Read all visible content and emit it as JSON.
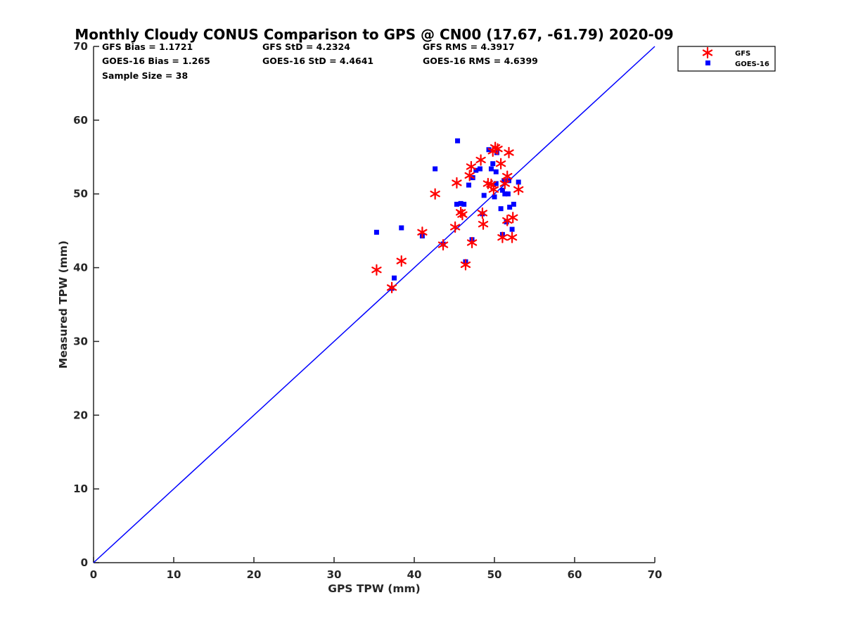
{
  "chart_data": {
    "type": "scatter",
    "title": "Monthly Cloudy CONUS Comparison to GPS @ CN00 (17.67, -61.79) 2020-09",
    "xlabel": "GPS TPW (mm)",
    "ylabel": "Measured TPW (mm)",
    "xlim": [
      0,
      70
    ],
    "ylim": [
      0,
      70
    ],
    "xticks": [
      "0",
      "10",
      "20",
      "30",
      "40",
      "50",
      "60",
      "70"
    ],
    "yticks": [
      "0",
      "10",
      "20",
      "30",
      "40",
      "50",
      "60",
      "70"
    ],
    "reference_line": {
      "name": "1:1 line",
      "color": "#0000ff",
      "points": [
        [
          0,
          0
        ],
        [
          70,
          70
        ]
      ]
    },
    "stats": {
      "gfs_bias": "GFS Bias = 1.1721",
      "goes_bias": "GOES-16 Bias = 1.265",
      "sample_size": "Sample Size = 38",
      "gfs_std": "GFS StD = 4.2324",
      "goes_std": "GOES-16 StD = 4.4641",
      "gfs_rms": "GFS RMS = 4.3917",
      "goes_rms": "GOES-16 RMS = 4.6399"
    },
    "legend": {
      "placement": "outside-top-right",
      "entries": [
        "GFS",
        "GOES-16"
      ]
    },
    "series": [
      {
        "name": "GFS",
        "marker": "asterisk",
        "color": "#ff0000",
        "points": [
          [
            35.3,
            39.7
          ],
          [
            37.2,
            37.3
          ],
          [
            38.4,
            40.9
          ],
          [
            41.0,
            44.8
          ],
          [
            42.6,
            50.0
          ],
          [
            43.6,
            43.1
          ],
          [
            45.1,
            45.5
          ],
          [
            45.3,
            51.5
          ],
          [
            45.8,
            47.5
          ],
          [
            46.0,
            47.2
          ],
          [
            46.4,
            40.4
          ],
          [
            46.9,
            52.5
          ],
          [
            47.1,
            53.7
          ],
          [
            47.2,
            43.4
          ],
          [
            48.3,
            54.6
          ],
          [
            48.5,
            47.4
          ],
          [
            48.6,
            45.9
          ],
          [
            49.2,
            51.4
          ],
          [
            49.6,
            51.3
          ],
          [
            49.8,
            55.8
          ],
          [
            49.9,
            50.6
          ],
          [
            50.1,
            56.3
          ],
          [
            50.4,
            56.1
          ],
          [
            50.8,
            54.1
          ],
          [
            51.0,
            44.1
          ],
          [
            51.3,
            51.4
          ],
          [
            51.6,
            46.4
          ],
          [
            51.6,
            52.4
          ],
          [
            52.2,
            44.1
          ],
          [
            52.3,
            46.8
          ],
          [
            53.0,
            50.6
          ],
          [
            51.8,
            55.6
          ]
        ]
      },
      {
        "name": "GOES-16",
        "marker": "square",
        "color": "#0000ff",
        "points": [
          [
            35.3,
            44.8
          ],
          [
            37.2,
            37.2
          ],
          [
            37.5,
            38.6
          ],
          [
            38.4,
            45.4
          ],
          [
            41.0,
            44.3
          ],
          [
            42.6,
            53.4
          ],
          [
            43.6,
            43.2
          ],
          [
            45.3,
            48.6
          ],
          [
            45.4,
            57.2
          ],
          [
            45.8,
            48.7
          ],
          [
            46.2,
            48.6
          ],
          [
            46.4,
            40.8
          ],
          [
            46.8,
            51.2
          ],
          [
            47.2,
            43.8
          ],
          [
            47.3,
            52.2
          ],
          [
            47.7,
            53.2
          ],
          [
            48.2,
            53.4
          ],
          [
            48.5,
            47.3
          ],
          [
            48.7,
            49.8
          ],
          [
            49.3,
            56.0
          ],
          [
            49.6,
            53.4
          ],
          [
            49.8,
            54.1
          ],
          [
            50.0,
            49.6
          ],
          [
            50.2,
            53.0
          ],
          [
            50.2,
            51.4
          ],
          [
            50.8,
            48.0
          ],
          [
            51.0,
            50.5
          ],
          [
            51.0,
            44.5
          ],
          [
            51.2,
            51.8
          ],
          [
            51.3,
            50.0
          ],
          [
            51.5,
            46.2
          ],
          [
            51.7,
            50.0
          ],
          [
            51.8,
            51.8
          ],
          [
            51.9,
            48.2
          ],
          [
            52.2,
            45.2
          ],
          [
            52.4,
            48.6
          ],
          [
            53.0,
            51.6
          ],
          [
            50.3,
            55.6
          ]
        ]
      }
    ]
  }
}
